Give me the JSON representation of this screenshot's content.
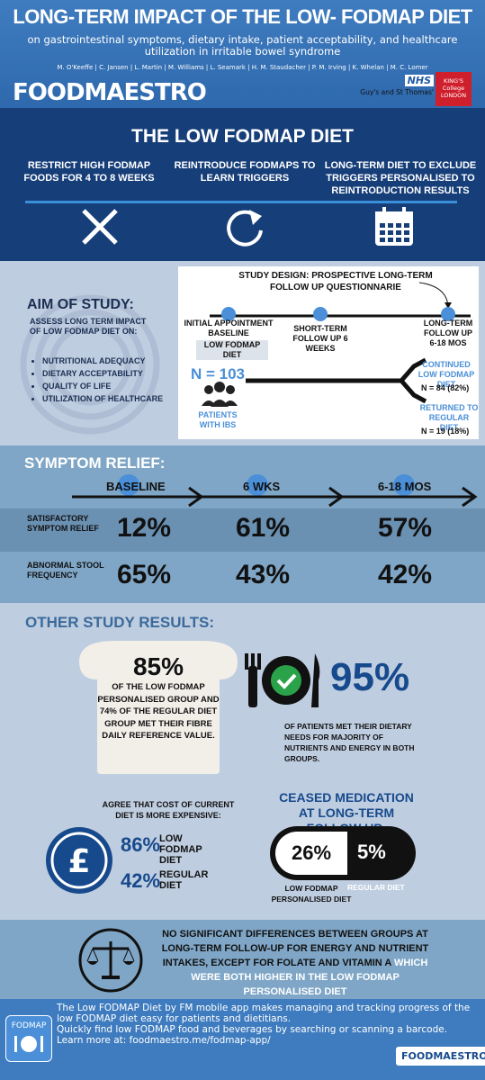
{
  "header": {
    "title": "LONG-TERM IMPACT OF THE LOW- FODMAP DIET",
    "subtitle": "on gastrointestinal symptoms, dietary intake, patient acceptability, and healthcare utilization in irritable bowel syndrome",
    "authors": "M. O'Keeffe | C. Jansen | L. Martin | M. Williams | L. Seamark | H. M. Staudacher | P. M. Irving | K. Whelan | M. C. Lomer",
    "logo_fm": "FOODMAESTRO",
    "logo_nhs": "NHS",
    "logo_gst": "Guy's and St Thomas'",
    "logo_kings": "KING'S College LONDON"
  },
  "diet": {
    "title": "THE LOW FODMAP DIET",
    "steps": [
      {
        "text": "RESTRICT HIGH FODMAP FOODS FOR 4 TO 8 WEEKS",
        "icon": "x-icon"
      },
      {
        "text": "REINTRODUCE FODMAPS TO LEARN TRIGGERS",
        "icon": "refresh-icon"
      },
      {
        "text": "LONG-TERM DIET TO EXCLUDE TRIGGERS PERSONALISED TO REINTRODUCTION RESULTS",
        "icon": "calendar-icon"
      }
    ]
  },
  "aim": {
    "title": "AIM OF STUDY:",
    "text": "ASSESS LONG TERM IMPACT OF LOW FODMAP DIET ON:",
    "items": [
      "NUTRITIONAL ADEQUACY",
      "DIETARY ACCEPTABILITY",
      "QUALITY OF LIFE",
      "UTILIZATION OF HEALTHCARE"
    ]
  },
  "study": {
    "title": "STUDY DESIGN: PROSPECTIVE LONG-TERM FOLLOW UP QUESTIONNARIE",
    "t1": "INITIAL APPOINTMENT BASELINE",
    "t1_tag": "LOW FODMAP DIET",
    "t2": "SHORT-TERM FOLLOW UP 6 WEEKS",
    "t3": "LONG-TERM FOLLOW UP 6-18 MOS",
    "n": "N = 103",
    "patients": "PATIENTS WITH IBS",
    "cont_label": "CONTINUED LOW FODMAP DIET",
    "cont_n": "N = 84 (82%)",
    "ret_label": "RETURNED TO REGULAR DIET",
    "ret_n": "N = 19 (18%)"
  },
  "symptom": {
    "title": "SYMPTOM RELIEF:",
    "timepoints": [
      "BASELINE",
      "6 WKS",
      "6-18 MOS"
    ],
    "rows": [
      {
        "label": "SATISFACTORY SYMPTOM RELIEF",
        "values": [
          "12%",
          "61%",
          "57%"
        ]
      },
      {
        "label": "ABNORMAL STOOL FREQUENCY",
        "values": [
          "65%",
          "43%",
          "42%"
        ]
      }
    ]
  },
  "other": {
    "title": "OTHER STUDY RESULTS:",
    "fibre_pct": "85%",
    "fibre_text": "OF THE LOW FODMAP PERSONALISED GROUP AND 74% OF THE REGULAR DIET GROUP MET THEIR FIBRE DAILY REFERENCE VALUE.",
    "needs_pct": "95%",
    "needs_text": "OF PATIENTS MET THEIR DIETARY NEEDS FOR MAJORITY OF NUTRIENTS AND ENERGY IN BOTH GROUPS.",
    "cost_title": "AGREE THAT COST OF CURRENT DIET IS MORE EXPENSIVE:",
    "cost_low_pct": "86%",
    "cost_low_label": "LOW FODMAP DIET",
    "cost_reg_pct": "42%",
    "cost_reg_label": "REGULAR DIET",
    "ceased_title": "CEASED MEDICATION AT LONG-TERM FOLLOW UP:",
    "ceased_low": "26%",
    "ceased_reg": "5%",
    "ceased_low_label": "LOW FODMAP PERSONALISED DIET",
    "ceased_reg_label": "REGULAR DIET"
  },
  "conclusion": {
    "text": "NO SIGNIFICANT DIFFERENCES BETWEEN GROUPS AT LONG-TERM FOLLOW-UP FOR ENERGY AND NUTRIENT INTAKES, EXCEPT FOR FOLATE AND VITAMIN A",
    "highlight": "WHICH WERE BOTH HIGHER IN THE LOW FODMAP PERSONALISED DIET"
  },
  "footer": {
    "app_icon_label": "FODMAP",
    "text1": "The Low FODMAP Diet by FM mobile app makes managing and tracking progress of the low FODMAP diet easy for patients and dietitians.",
    "text2": "Quickly find low FODMAP food and beverages by searching or scanning a barcode.",
    "text3": "Learn more at: foodmaestro.me/fodmap-app/",
    "logo": "FOODMAESTRO"
  },
  "colors": {
    "dark_navy": "#163e79",
    "header_blue": "#3f7cbf",
    "light_panel": "#bfcde0",
    "mid_panel": "#7fa6c6",
    "accent_blue": "#4a8fd8"
  }
}
